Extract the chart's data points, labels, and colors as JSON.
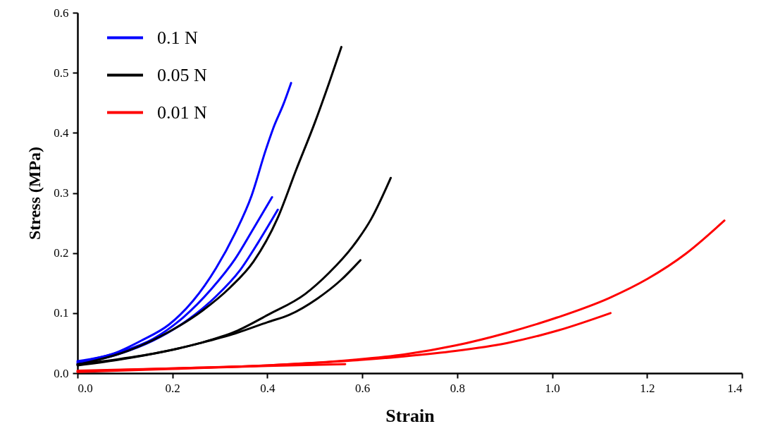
{
  "chart_data": {
    "type": "line",
    "xlabel": "Strain",
    "ylabel": "Stress (MPa)",
    "xlim": [
      0,
      1.4
    ],
    "ylim": [
      0,
      0.6
    ],
    "xticks": [
      {
        "value": 0,
        "label": "0.0"
      },
      0.2,
      0.4,
      0.6,
      0.8,
      {
        "value": 1,
        "label": "1.0"
      },
      1.2,
      1.4
    ],
    "yticks": [
      {
        "value": 0,
        "label": "0.0"
      },
      0.1,
      0.2,
      0.3,
      0.4,
      0.5,
      0.6
    ],
    "grid": false,
    "legend": "top left",
    "marker": "none",
    "line_style": "solid",
    "series": [
      {
        "name": "0.1 N",
        "color": "#0000ff",
        "x": [
          0,
          0.074,
          0.134,
          0.193,
          0.243,
          0.292,
          0.332,
          0.367,
          0.396,
          0.415,
          0.433,
          0.45
        ],
        "values": [
          0.02,
          0.032,
          0.054,
          0.081,
          0.12,
          0.175,
          0.233,
          0.296,
          0.37,
          0.413,
          0.446,
          0.483
        ]
      },
      {
        "color": "#0000ff",
        "x": [
          0,
          0.084,
          0.159,
          0.223,
          0.282,
          0.332,
          0.371,
          0.41
        ],
        "values": [
          0.018,
          0.034,
          0.057,
          0.093,
          0.14,
          0.19,
          0.241,
          0.293
        ]
      },
      {
        "color": "#0000ff",
        "x": [
          0,
          0.084,
          0.159,
          0.233,
          0.292,
          0.342,
          0.381,
          0.422
        ],
        "values": [
          0.016,
          0.031,
          0.054,
          0.089,
          0.128,
          0.171,
          0.218,
          0.272
        ]
      },
      {
        "name": "0.05 N",
        "color": "#000000",
        "x": [
          0,
          0.109,
          0.193,
          0.263,
          0.322,
          0.371,
          0.421,
          0.461,
          0.5,
          0.53,
          0.556
        ],
        "values": [
          0.014,
          0.038,
          0.069,
          0.104,
          0.143,
          0.186,
          0.257,
          0.339,
          0.417,
          0.483,
          0.543
        ]
      },
      {
        "color": "#000000",
        "x": [
          0,
          0.084,
          0.183,
          0.258,
          0.332,
          0.401,
          0.48,
          0.53,
          0.579,
          0.619,
          0.66
        ],
        "values": [
          0.013,
          0.022,
          0.036,
          0.05,
          0.069,
          0.097,
          0.132,
          0.167,
          0.21,
          0.257,
          0.325
        ]
      },
      {
        "color": "#000000",
        "x": [
          0,
          0.084,
          0.183,
          0.258,
          0.332,
          0.401,
          0.446,
          0.505,
          0.555,
          0.596
        ],
        "values": [
          0.015,
          0.023,
          0.036,
          0.05,
          0.066,
          0.085,
          0.097,
          0.124,
          0.155,
          0.188
        ]
      },
      {
        "name": "0.01 N",
        "color": "#ff0000",
        "x": [
          0,
          0.2,
          0.4,
          0.579,
          0.688,
          0.796,
          0.904,
          1.012,
          1.12,
          1.201,
          1.282,
          1.363
        ],
        "values": [
          0.004,
          0.008,
          0.013,
          0.022,
          0.031,
          0.046,
          0.067,
          0.093,
          0.125,
          0.157,
          0.199,
          0.254
        ]
      },
      {
        "color": "#ff0000",
        "x": [
          0,
          0.2,
          0.4,
          0.58,
          0.688,
          0.796,
          0.904,
          1.012,
          1.123
        ],
        "values": [
          0.003,
          0.008,
          0.013,
          0.021,
          0.028,
          0.037,
          0.05,
          0.071,
          0.1
        ]
      },
      {
        "color": "#ff0000",
        "x": [
          0,
          0.2,
          0.4,
          0.564
        ],
        "values": [
          0.002,
          0.007,
          0.012,
          0.015
        ]
      }
    ]
  }
}
